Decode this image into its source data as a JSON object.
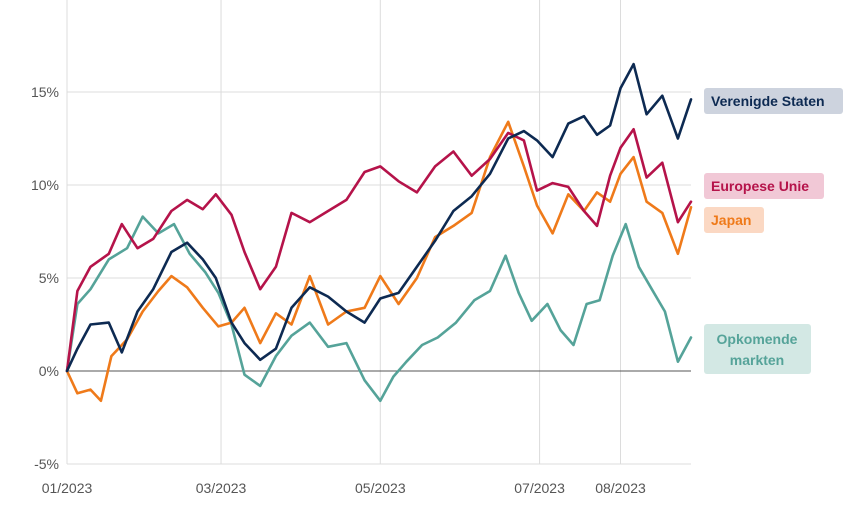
{
  "chart_data": {
    "type": "line",
    "x_ticks": [
      "01/2023",
      "03/2023",
      "05/2023",
      "07/2023",
      "08/2023"
    ],
    "y_ticks": [
      "-5%",
      "0%",
      "5%",
      "10%",
      "15%"
    ],
    "ylim": [
      -5,
      19
    ],
    "grid": "vertical and horizontal",
    "legend_placement": "right, inline labels",
    "series": [
      {
        "name": "Verenigde Staten",
        "color": "#0d2a52",
        "label_bg": "#cdd3de",
        "points": [
          [
            "2023-01-01",
            0.0
          ],
          [
            "2023-01-05",
            1.2
          ],
          [
            "2023-01-10",
            2.5
          ],
          [
            "2023-01-17",
            2.6
          ],
          [
            "2023-01-22",
            1.0
          ],
          [
            "2023-01-28",
            3.2
          ],
          [
            "2023-02-03",
            4.4
          ],
          [
            "2023-02-10",
            6.4
          ],
          [
            "2023-02-16",
            6.9
          ],
          [
            "2023-02-22",
            6.0
          ],
          [
            "2023-02-27",
            5.0
          ],
          [
            "2023-03-05",
            2.6
          ],
          [
            "2023-03-10",
            1.5
          ],
          [
            "2023-03-16",
            0.6
          ],
          [
            "2023-03-22",
            1.2
          ],
          [
            "2023-03-28",
            3.4
          ],
          [
            "2023-04-04",
            4.5
          ],
          [
            "2023-04-11",
            4.0
          ],
          [
            "2023-04-18",
            3.2
          ],
          [
            "2023-04-25",
            2.6
          ],
          [
            "2023-05-01",
            3.9
          ],
          [
            "2023-05-08",
            4.2
          ],
          [
            "2023-05-15",
            5.6
          ],
          [
            "2023-05-22",
            7.0
          ],
          [
            "2023-05-29",
            8.6
          ],
          [
            "2023-06-05",
            9.4
          ],
          [
            "2023-06-12",
            10.6
          ],
          [
            "2023-06-19",
            12.5
          ],
          [
            "2023-06-25",
            12.9
          ],
          [
            "2023-06-30",
            12.4
          ],
          [
            "2023-07-06",
            11.5
          ],
          [
            "2023-07-12",
            13.3
          ],
          [
            "2023-07-18",
            13.7
          ],
          [
            "2023-07-23",
            12.7
          ],
          [
            "2023-07-28",
            13.2
          ],
          [
            "2023-08-01",
            15.2
          ],
          [
            "2023-08-06",
            16.5
          ],
          [
            "2023-08-11",
            13.8
          ],
          [
            "2023-08-17",
            14.8
          ],
          [
            "2023-08-23",
            12.5
          ],
          [
            "2023-08-28",
            14.6
          ]
        ]
      },
      {
        "name": "Europese Unie",
        "color": "#b5134a",
        "label_bg": "#f1c8d6",
        "points": [
          [
            "2023-01-01",
            0.0
          ],
          [
            "2023-01-05",
            4.3
          ],
          [
            "2023-01-10",
            5.6
          ],
          [
            "2023-01-17",
            6.3
          ],
          [
            "2023-01-22",
            7.9
          ],
          [
            "2023-01-28",
            6.6
          ],
          [
            "2023-02-03",
            7.1
          ],
          [
            "2023-02-10",
            8.6
          ],
          [
            "2023-02-16",
            9.2
          ],
          [
            "2023-02-22",
            8.7
          ],
          [
            "2023-02-27",
            9.5
          ],
          [
            "2023-03-05",
            8.4
          ],
          [
            "2023-03-10",
            6.4
          ],
          [
            "2023-03-16",
            4.4
          ],
          [
            "2023-03-22",
            5.6
          ],
          [
            "2023-03-28",
            8.5
          ],
          [
            "2023-04-04",
            8.0
          ],
          [
            "2023-04-11",
            8.6
          ],
          [
            "2023-04-18",
            9.2
          ],
          [
            "2023-04-25",
            10.7
          ],
          [
            "2023-05-01",
            11.0
          ],
          [
            "2023-05-08",
            10.2
          ],
          [
            "2023-05-15",
            9.6
          ],
          [
            "2023-05-22",
            11.0
          ],
          [
            "2023-05-29",
            11.8
          ],
          [
            "2023-06-05",
            10.5
          ],
          [
            "2023-06-12",
            11.4
          ],
          [
            "2023-06-19",
            12.8
          ],
          [
            "2023-06-25",
            12.4
          ],
          [
            "2023-06-30",
            9.7
          ],
          [
            "2023-07-06",
            10.1
          ],
          [
            "2023-07-12",
            9.9
          ],
          [
            "2023-07-18",
            8.6
          ],
          [
            "2023-07-23",
            7.8
          ],
          [
            "2023-07-28",
            10.5
          ],
          [
            "2023-08-01",
            12.0
          ],
          [
            "2023-08-06",
            13.0
          ],
          [
            "2023-08-11",
            10.4
          ],
          [
            "2023-08-17",
            11.2
          ],
          [
            "2023-08-23",
            8.0
          ],
          [
            "2023-08-28",
            9.1
          ]
        ]
      },
      {
        "name": "Japan",
        "color": "#ef7a1a",
        "label_bg": "#fbd8c3",
        "points": [
          [
            "2023-01-01",
            0.0
          ],
          [
            "2023-01-05",
            -1.2
          ],
          [
            "2023-01-10",
            -1.0
          ],
          [
            "2023-01-14",
            -1.6
          ],
          [
            "2023-01-18",
            0.8
          ],
          [
            "2023-01-24",
            1.7
          ],
          [
            "2023-01-30",
            3.2
          ],
          [
            "2023-02-05",
            4.3
          ],
          [
            "2023-02-10",
            5.1
          ],
          [
            "2023-02-16",
            4.5
          ],
          [
            "2023-02-22",
            3.4
          ],
          [
            "2023-02-28",
            2.4
          ],
          [
            "2023-03-05",
            2.6
          ],
          [
            "2023-03-10",
            3.4
          ],
          [
            "2023-03-16",
            1.5
          ],
          [
            "2023-03-22",
            3.1
          ],
          [
            "2023-03-28",
            2.5
          ],
          [
            "2023-04-04",
            5.1
          ],
          [
            "2023-04-11",
            2.5
          ],
          [
            "2023-04-18",
            3.2
          ],
          [
            "2023-04-25",
            3.4
          ],
          [
            "2023-05-01",
            5.1
          ],
          [
            "2023-05-08",
            3.6
          ],
          [
            "2023-05-15",
            5.0
          ],
          [
            "2023-05-22",
            7.2
          ],
          [
            "2023-05-29",
            7.8
          ],
          [
            "2023-06-05",
            8.5
          ],
          [
            "2023-06-12",
            11.5
          ],
          [
            "2023-06-19",
            13.4
          ],
          [
            "2023-06-25",
            11.0
          ],
          [
            "2023-06-30",
            8.9
          ],
          [
            "2023-07-06",
            7.4
          ],
          [
            "2023-07-12",
            9.5
          ],
          [
            "2023-07-18",
            8.6
          ],
          [
            "2023-07-23",
            9.6
          ],
          [
            "2023-07-28",
            9.1
          ],
          [
            "2023-08-01",
            10.6
          ],
          [
            "2023-08-06",
            11.5
          ],
          [
            "2023-08-11",
            9.1
          ],
          [
            "2023-08-17",
            8.5
          ],
          [
            "2023-08-23",
            6.3
          ],
          [
            "2023-08-28",
            8.8
          ]
        ]
      },
      {
        "name": "Opkomende markten",
        "color": "#55a399",
        "label_bg": "#d3e8e4",
        "points": [
          [
            "2023-01-01",
            0.0
          ],
          [
            "2023-01-05",
            3.6
          ],
          [
            "2023-01-10",
            4.4
          ],
          [
            "2023-01-17",
            6.0
          ],
          [
            "2023-01-24",
            6.6
          ],
          [
            "2023-01-30",
            8.3
          ],
          [
            "2023-02-05",
            7.4
          ],
          [
            "2023-02-11",
            7.9
          ],
          [
            "2023-02-17",
            6.3
          ],
          [
            "2023-02-23",
            5.3
          ],
          [
            "2023-02-28",
            4.2
          ],
          [
            "2023-03-05",
            2.5
          ],
          [
            "2023-03-10",
            -0.2
          ],
          [
            "2023-03-16",
            -0.8
          ],
          [
            "2023-03-22",
            0.8
          ],
          [
            "2023-03-28",
            1.9
          ],
          [
            "2023-04-04",
            2.6
          ],
          [
            "2023-04-11",
            1.3
          ],
          [
            "2023-04-18",
            1.5
          ],
          [
            "2023-04-25",
            -0.5
          ],
          [
            "2023-05-01",
            -1.6
          ],
          [
            "2023-05-06",
            -0.3
          ],
          [
            "2023-05-11",
            0.5
          ],
          [
            "2023-05-17",
            1.4
          ],
          [
            "2023-05-23",
            1.8
          ],
          [
            "2023-05-30",
            2.6
          ],
          [
            "2023-06-06",
            3.8
          ],
          [
            "2023-06-12",
            4.3
          ],
          [
            "2023-06-18",
            6.2
          ],
          [
            "2023-06-23",
            4.2
          ],
          [
            "2023-06-28",
            2.7
          ],
          [
            "2023-07-04",
            3.6
          ],
          [
            "2023-07-09",
            2.2
          ],
          [
            "2023-07-14",
            1.4
          ],
          [
            "2023-07-19",
            3.6
          ],
          [
            "2023-07-24",
            3.8
          ],
          [
            "2023-07-29",
            6.2
          ],
          [
            "2023-08-03",
            7.9
          ],
          [
            "2023-08-08",
            5.6
          ],
          [
            "2023-08-13",
            4.4
          ],
          [
            "2023-08-18",
            3.2
          ],
          [
            "2023-08-23",
            0.5
          ],
          [
            "2023-08-28",
            1.8
          ]
        ]
      }
    ]
  },
  "legend": {
    "us": "Verenigde Staten",
    "eu": "Europese Unie",
    "jp": "Japan",
    "em_line1": "Opkomende",
    "em_line2": "markten"
  }
}
